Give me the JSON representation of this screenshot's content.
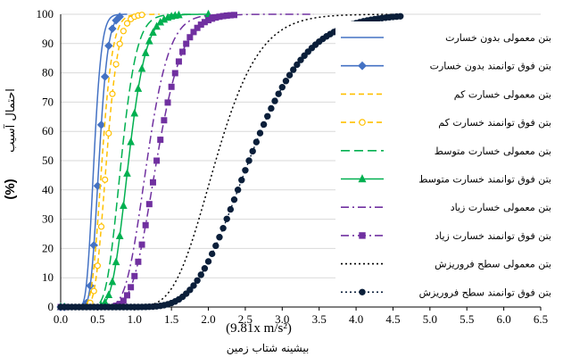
{
  "chart_data": {
    "type": "line",
    "xlabel_fa": "بیشینه شتاب زمین",
    "xlabel_unit": "(9.81x m/s²)",
    "ylabel_fa": "احتمال آسیب",
    "ylabel_unit": "(%)",
    "xlim": [
      0,
      6.5
    ],
    "ylim": [
      0,
      100
    ],
    "x_ticks": [
      "0.0",
      "0.5",
      "1.0",
      "1.5",
      "2.0",
      "2.5",
      "3.0",
      "3.5",
      "4.0",
      "4.5",
      "5.0",
      "5.5",
      "6.0",
      "6.5"
    ],
    "y_ticks": [
      "0",
      "10",
      "20",
      "30",
      "40",
      "50",
      "60",
      "70",
      "80",
      "90",
      "100"
    ],
    "grid": "horizontal",
    "legend_position": "right",
    "series": [
      {
        "name": "بتن معمولی بدون خسارت",
        "color": "#4472C4",
        "dash": "solid",
        "marker": "none",
        "median": 0.45,
        "beta": 0.18,
        "xmax": 0.9
      },
      {
        "name": "بتن فوق توانمند بدون خسارت",
        "color": "#4472C4",
        "dash": "solid",
        "marker": "diamond",
        "median": 0.52,
        "beta": 0.18,
        "xmax": 0.82
      },
      {
        "name": "بتن معمولی خسارت کم",
        "color": "#FFC000",
        "dash": "dash",
        "marker": "none",
        "median": 0.56,
        "beta": 0.2,
        "xmax": 1.1
      },
      {
        "name": "بتن فوق توانمند خسارت کم",
        "color": "#FFC000",
        "dash": "dash",
        "marker": "circle-open",
        "median": 0.62,
        "beta": 0.2,
        "xmax": 1.34
      },
      {
        "name": "بتن معمولی خسارت متوسط",
        "color": "#00B050",
        "dash": "longdash",
        "marker": "none",
        "median": 0.82,
        "beta": 0.2,
        "xmax": 1.8
      },
      {
        "name": "بتن فوق توانمند خسارت متوسط",
        "color": "#00B050",
        "dash": "solid",
        "marker": "triangle",
        "median": 0.92,
        "beta": 0.2,
        "xmax": 2.0
      },
      {
        "name": "بتن معمولی خسارت زیاد",
        "color": "#7030A0",
        "dash": "dashdot",
        "marker": "none",
        "median": 1.17,
        "beta": 0.2,
        "xmax": 2.4
      },
      {
        "name": "بتن فوق توانمند خسارت زیاد",
        "color": "#7030A0",
        "dash": "dashdot",
        "marker": "square",
        "median": 1.3,
        "beta": 0.21,
        "xmax": 3.43
      },
      {
        "name": "بتن معمولی سطح فروریزش",
        "color": "#000000",
        "dash": "dot",
        "marker": "none",
        "median": 2.1,
        "beta": 0.22,
        "xmax": 4.6
      },
      {
        "name": "بتن فوق توانمند سطح فروریزش",
        "color": "#0B1F3A",
        "dash": "dot",
        "marker": "circle-filled",
        "median": 2.55,
        "beta": 0.24,
        "xmax": 4.6
      }
    ]
  }
}
